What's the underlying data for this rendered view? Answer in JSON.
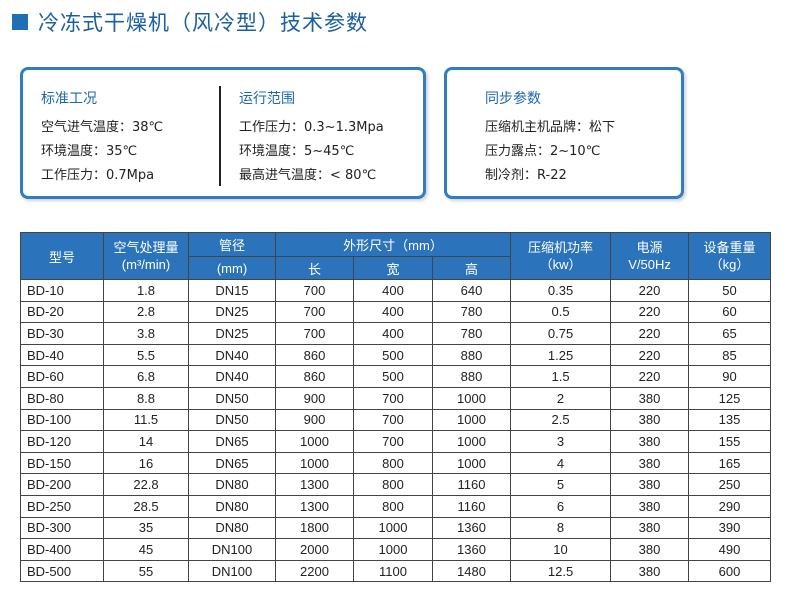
{
  "title": "冷冻式干燥机（风冷型）技术参数",
  "conditions": {
    "standard": {
      "heading": "标准工况",
      "lines": [
        "空气进气温度：38℃",
        "环境温度：35℃",
        "工作压力：0.7Mpa"
      ]
    },
    "operating": {
      "heading": "运行范围",
      "lines": [
        "工作压力：0.3~1.3Mpa",
        "环境温度：5~45℃",
        "最高进气温度：< 80℃"
      ]
    },
    "sync": {
      "heading": "同步参数",
      "lines": [
        "压缩机主机品牌：松下",
        "压力露点：2~10℃",
        "制冷剂：R-22"
      ]
    }
  },
  "table": {
    "headers": {
      "model": "型号",
      "flow_line1": "空气处理量",
      "flow_line2": "(m³/min)",
      "pipe_line1": "管径",
      "pipe_line2": "(mm)",
      "dims": "外形尺寸（mm）",
      "length": "长",
      "width": "宽",
      "height": "高",
      "power_line1": "压缩机功率",
      "power_line2": "（kw）",
      "supply_line1": "电源",
      "supply_line2": "V/50Hz",
      "weight_line1": "设备重量",
      "weight_line2": "（kg）"
    },
    "rows": [
      [
        "BD-10",
        "1.8",
        "DN15",
        "700",
        "400",
        "640",
        "0.35",
        "220",
        "50"
      ],
      [
        "BD-20",
        "2.8",
        "DN25",
        "700",
        "400",
        "780",
        "0.5",
        "220",
        "60"
      ],
      [
        "BD-30",
        "3.8",
        "DN25",
        "700",
        "400",
        "780",
        "0.75",
        "220",
        "65"
      ],
      [
        "BD-40",
        "5.5",
        "DN40",
        "860",
        "500",
        "880",
        "1.25",
        "220",
        "85"
      ],
      [
        "BD-60",
        "6.8",
        "DN40",
        "860",
        "500",
        "880",
        "1.5",
        "220",
        "90"
      ],
      [
        "BD-80",
        "8.8",
        "DN50",
        "900",
        "700",
        "1000",
        "2",
        "380",
        "125"
      ],
      [
        "BD-100",
        "11.5",
        "DN50",
        "900",
        "700",
        "1000",
        "2.5",
        "380",
        "135"
      ],
      [
        "BD-120",
        "14",
        "DN65",
        "1000",
        "700",
        "1000",
        "3",
        "380",
        "155"
      ],
      [
        "BD-150",
        "16",
        "DN65",
        "1000",
        "800",
        "1000",
        "4",
        "380",
        "165"
      ],
      [
        "BD-200",
        "22.8",
        "DN80",
        "1300",
        "800",
        "1160",
        "5",
        "380",
        "250"
      ],
      [
        "BD-250",
        "28.5",
        "DN80",
        "1300",
        "800",
        "1160",
        "6",
        "380",
        "290"
      ],
      [
        "BD-300",
        "35",
        "DN80",
        "1800",
        "1000",
        "1360",
        "8",
        "380",
        "390"
      ],
      [
        "BD-400",
        "45",
        "DN100",
        "2000",
        "1000",
        "1360",
        "10",
        "380",
        "490"
      ],
      [
        "BD-500",
        "55",
        "DN100",
        "2200",
        "1100",
        "1480",
        "12.5",
        "380",
        "600"
      ]
    ]
  },
  "colors": {
    "accent": "#1f6fb3",
    "header_bg": "#2b73bb",
    "panel_border": "#2f7ec1"
  }
}
